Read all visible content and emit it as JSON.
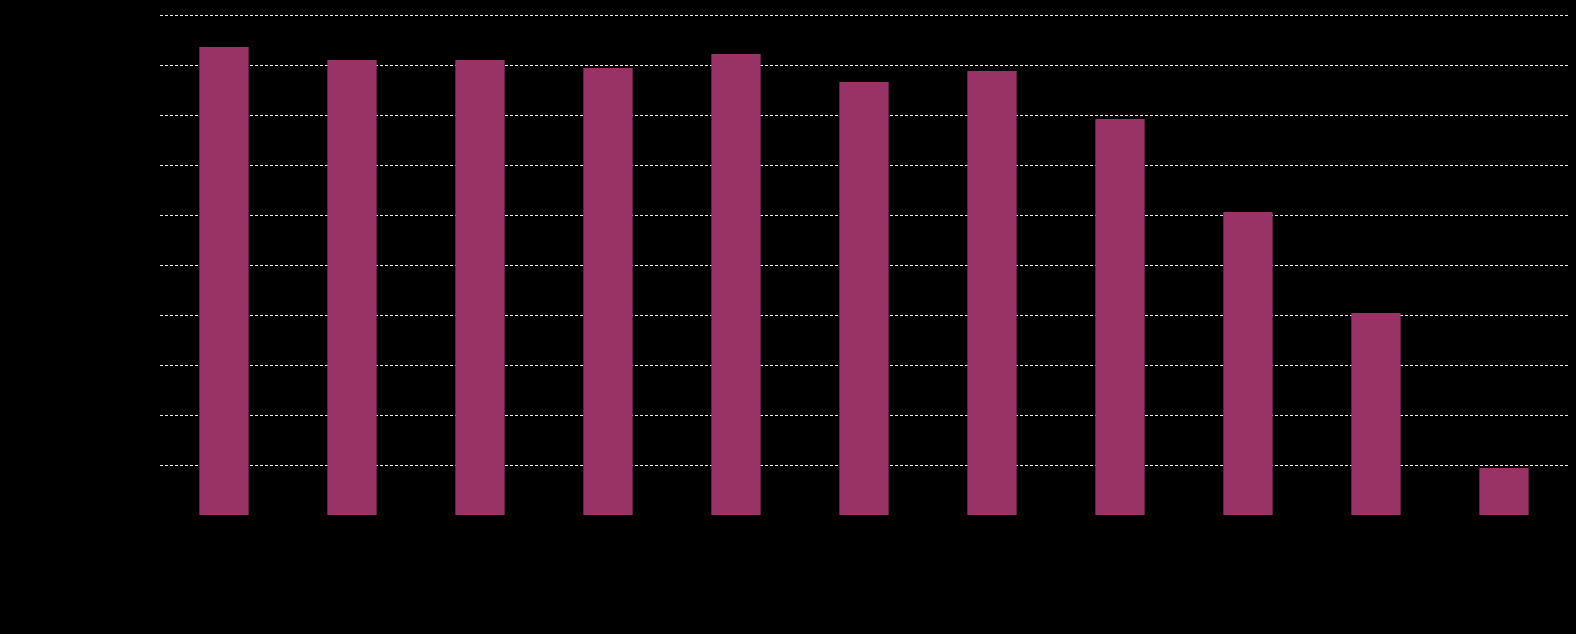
{
  "chart_data": {
    "type": "bar",
    "categories": [
      null,
      null,
      null,
      null,
      null,
      null,
      null,
      null,
      null,
      null,
      null
    ],
    "values": [
      9.36,
      9.1,
      9.1,
      8.94,
      9.22,
      8.66,
      8.88,
      7.92,
      6.06,
      4.04,
      0.94
    ],
    "color": "#993366",
    "ylim": [
      0,
      10
    ],
    "yticks": [
      1,
      2,
      3,
      4,
      5,
      6,
      7,
      8,
      9,
      10
    ],
    "grid": true
  }
}
